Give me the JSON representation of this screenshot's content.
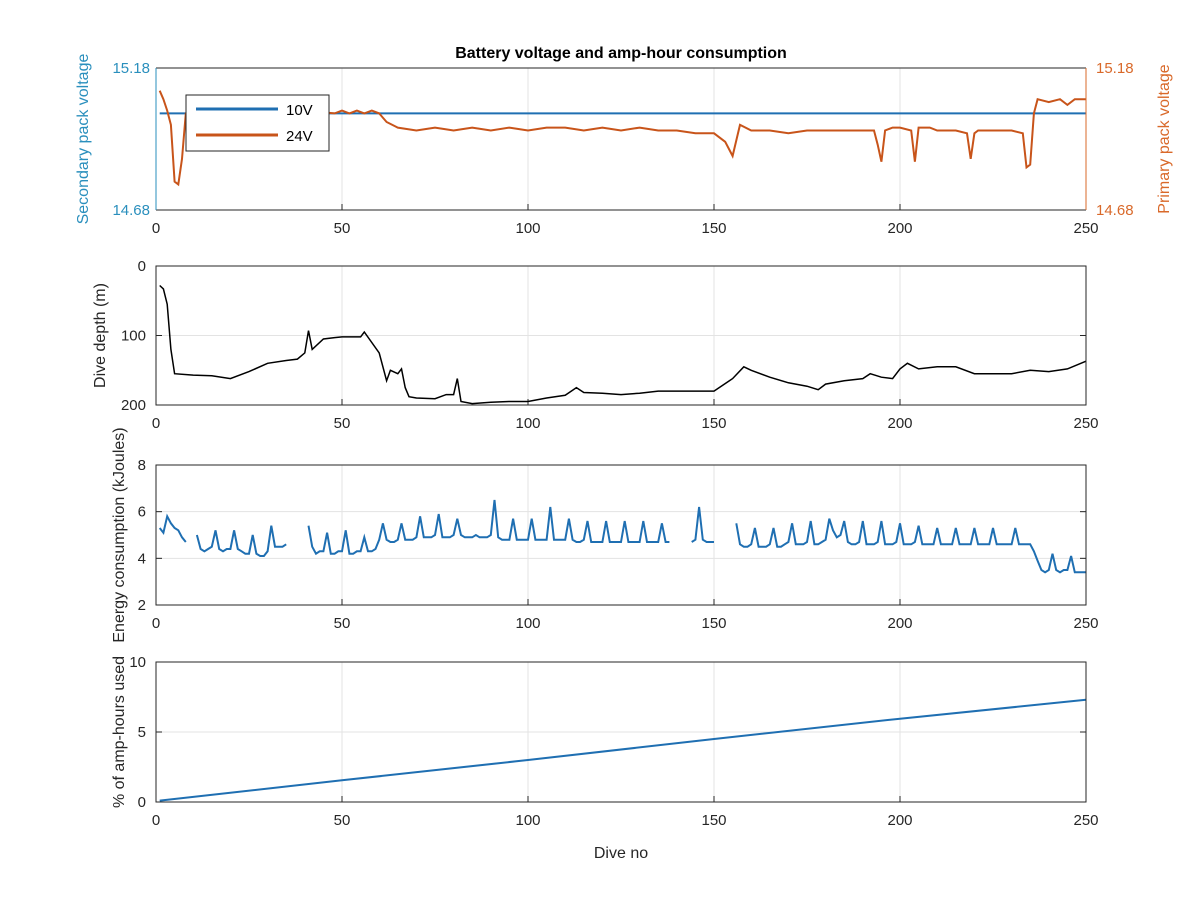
{
  "figure_title": "Battery voltage and amp-hour consumption",
  "colors": {
    "secondary": "#2a8fbd",
    "primary": "#d9692a",
    "line_blue": "#1f6fb2",
    "line_orange": "#c8541a",
    "black": "#000000",
    "grid": "#e3e3e3",
    "axis": "#262626"
  },
  "chart_data": [
    {
      "type": "line",
      "title": "Battery voltage and amp-hour consumption",
      "xlabel": "",
      "ylabel_left": "Secondary pack voltage",
      "ylabel_right": "Primary pack voltage",
      "xlim": [
        0,
        250
      ],
      "ylim_left": [
        14.68,
        15.18
      ],
      "ylim_right": [
        14.68,
        15.18
      ],
      "xticks": [
        "0",
        "50",
        "100",
        "150",
        "200",
        "250"
      ],
      "yticks_left": [
        "14.68",
        "15.18"
      ],
      "yticks_right": [
        "14.68",
        "15.18"
      ],
      "grid": true,
      "legend_position": "top-left",
      "series": [
        {
          "name": "10V",
          "axis": "left",
          "x": [
            1,
            250
          ],
          "y": [
            15.02,
            15.02
          ]
        },
        {
          "name": "24V",
          "axis": "right",
          "x": [
            1,
            2,
            3,
            4,
            5,
            6,
            7,
            8,
            10,
            15,
            20,
            30,
            40,
            48,
            50,
            52,
            54,
            56,
            58,
            60,
            62,
            65,
            70,
            75,
            80,
            85,
            90,
            95,
            100,
            105,
            110,
            115,
            120,
            125,
            130,
            135,
            140,
            145,
            150,
            153,
            155,
            157,
            160,
            165,
            170,
            175,
            180,
            185,
            190,
            193,
            194,
            195,
            196,
            198,
            200,
            203,
            204,
            205,
            206,
            208,
            210,
            215,
            218,
            219,
            220,
            221,
            223,
            225,
            230,
            233,
            234,
            235,
            236,
            237,
            240,
            243,
            245,
            247,
            250
          ],
          "y": [
            15.1,
            15.07,
            15.03,
            14.98,
            14.78,
            14.77,
            14.86,
            15.02,
            15.03,
            15.03,
            15.03,
            15.03,
            15.03,
            15.02,
            15.03,
            15.02,
            15.03,
            15.02,
            15.03,
            15.02,
            14.99,
            14.97,
            14.96,
            14.97,
            14.96,
            14.97,
            14.96,
            14.97,
            14.96,
            14.97,
            14.97,
            14.96,
            14.97,
            14.96,
            14.97,
            14.96,
            14.96,
            14.95,
            14.95,
            14.92,
            14.87,
            14.98,
            14.96,
            14.96,
            14.95,
            14.96,
            14.96,
            14.96,
            14.96,
            14.96,
            14.91,
            14.85,
            14.96,
            14.97,
            14.97,
            14.96,
            14.85,
            14.97,
            14.97,
            14.97,
            14.96,
            14.96,
            14.95,
            14.86,
            14.95,
            14.96,
            14.96,
            14.96,
            14.96,
            14.95,
            14.83,
            14.84,
            15.02,
            15.07,
            15.06,
            15.07,
            15.05,
            15.07,
            15.07
          ]
        }
      ]
    },
    {
      "type": "line",
      "xlabel": "",
      "ylabel": "Dive depth (m)",
      "xlim": [
        0,
        250
      ],
      "ylim": [
        0,
        200
      ],
      "y_reversed": true,
      "xticks": [
        "0",
        "50",
        "100",
        "150",
        "200",
        "250"
      ],
      "yticks": [
        "0",
        "100",
        "200"
      ],
      "grid": true,
      "series": [
        {
          "x": [
            1,
            2,
            3,
            4,
            5,
            10,
            15,
            20,
            25,
            30,
            35,
            38,
            40,
            41,
            42,
            45,
            48,
            50,
            55,
            56,
            60,
            62,
            63,
            65,
            66,
            67,
            68,
            70,
            75,
            78,
            80,
            81,
            82,
            85,
            90,
            95,
            100,
            105,
            110,
            113,
            115,
            120,
            125,
            130,
            135,
            140,
            145,
            150,
            155,
            158,
            160,
            165,
            170,
            175,
            178,
            180,
            185,
            190,
            192,
            195,
            198,
            200,
            202,
            205,
            210,
            215,
            220,
            225,
            230,
            235,
            240,
            245,
            250
          ],
          "y": [
            28,
            33,
            55,
            120,
            155,
            157,
            158,
            162,
            152,
            140,
            136,
            134,
            125,
            93,
            120,
            105,
            103,
            102,
            102,
            95,
            125,
            165,
            150,
            155,
            148,
            175,
            188,
            190,
            191,
            185,
            185,
            162,
            195,
            198,
            196,
            195,
            195,
            190,
            186,
            175,
            182,
            183,
            185,
            183,
            180,
            180,
            180,
            180,
            162,
            145,
            150,
            160,
            168,
            173,
            178,
            170,
            165,
            162,
            155,
            160,
            162,
            148,
            140,
            148,
            145,
            145,
            155,
            155,
            155,
            150,
            152,
            148,
            137
          ]
        }
      ]
    },
    {
      "type": "line",
      "xlabel": "",
      "ylabel": "Energy consumption (kJoules)",
      "xlim": [
        0,
        250
      ],
      "ylim": [
        2,
        8
      ],
      "xticks": [
        "0",
        "50",
        "100",
        "150",
        "200",
        "250"
      ],
      "yticks": [
        "2",
        "4",
        "6",
        "8"
      ],
      "grid": true,
      "series": [
        {
          "x": [
            1,
            2,
            3,
            4,
            5,
            6,
            7,
            8
          ],
          "y": [
            5.3,
            5.1,
            5.8,
            5.5,
            5.3,
            5.2,
            4.9,
            4.7
          ]
        },
        {
          "x": [
            11,
            12,
            13,
            14,
            15,
            16,
            17,
            18,
            19,
            20,
            21,
            22,
            23,
            24,
            25,
            26,
            27,
            28,
            29,
            30,
            31,
            32,
            33,
            34,
            35
          ],
          "y": [
            5.0,
            4.4,
            4.3,
            4.4,
            4.5,
            5.2,
            4.4,
            4.3,
            4.4,
            4.4,
            5.2,
            4.4,
            4.3,
            4.2,
            4.2,
            5.0,
            4.2,
            4.1,
            4.1,
            4.3,
            5.4,
            4.5,
            4.5,
            4.5,
            4.6
          ]
        },
        {
          "x": [
            41,
            42,
            43,
            44,
            45,
            46,
            47,
            48,
            49,
            50,
            51,
            52,
            53,
            54,
            55,
            56,
            57,
            58,
            59,
            60,
            61,
            62,
            63,
            64,
            65,
            66,
            67,
            68,
            69,
            70,
            71,
            72,
            73,
            74,
            75,
            76,
            77,
            78,
            79,
            80,
            81,
            82,
            83,
            84,
            85,
            86,
            87,
            88,
            89,
            90,
            91,
            92,
            93,
            94,
            95,
            96,
            97,
            98,
            99,
            100,
            101,
            102,
            103,
            104,
            105,
            106,
            107,
            108,
            109,
            110,
            111,
            112,
            113,
            114,
            115,
            116,
            117,
            118,
            119,
            120,
            121,
            122,
            123,
            124,
            125,
            126,
            127,
            128,
            129,
            130,
            131,
            132,
            133,
            134,
            135,
            136,
            137,
            138
          ],
          "y": [
            5.4,
            4.5,
            4.2,
            4.3,
            4.3,
            5.1,
            4.2,
            4.2,
            4.3,
            4.3,
            5.2,
            4.2,
            4.2,
            4.3,
            4.3,
            4.9,
            4.3,
            4.3,
            4.4,
            4.8,
            5.5,
            4.8,
            4.7,
            4.7,
            4.8,
            5.5,
            4.8,
            4.8,
            4.8,
            4.9,
            5.8,
            4.9,
            4.9,
            4.9,
            5.0,
            5.9,
            4.9,
            4.9,
            4.9,
            5.0,
            5.7,
            5.0,
            4.9,
            4.9,
            4.9,
            5.0,
            4.9,
            4.9,
            4.9,
            5.0,
            6.5,
            4.9,
            4.8,
            4.8,
            4.8,
            5.7,
            4.8,
            4.8,
            4.8,
            4.8,
            5.7,
            4.8,
            4.8,
            4.8,
            4.8,
            6.2,
            4.8,
            4.8,
            4.8,
            4.8,
            5.7,
            4.8,
            4.7,
            4.7,
            4.8,
            5.6,
            4.7,
            4.7,
            4.7,
            4.7,
            5.6,
            4.7,
            4.7,
            4.7,
            4.7,
            5.6,
            4.7,
            4.7,
            4.7,
            4.7,
            5.6,
            4.7,
            4.7,
            4.7,
            4.7,
            5.5,
            4.7,
            4.7
          ]
        },
        {
          "x": [
            144,
            145,
            146,
            147,
            148,
            149,
            150
          ],
          "y": [
            4.7,
            4.8,
            6.2,
            4.8,
            4.7,
            4.7,
            4.7
          ]
        },
        {
          "x": [
            156,
            157,
            158,
            159,
            160,
            161,
            162,
            163,
            164,
            165,
            166,
            167,
            168,
            169,
            170,
            171,
            172,
            173,
            174,
            175,
            176,
            177,
            178,
            179,
            180,
            181,
            182,
            183,
            184,
            185,
            186,
            187,
            188,
            189,
            190,
            191,
            192,
            193,
            194,
            195,
            196,
            197,
            198,
            199,
            200,
            201,
            202,
            203,
            204,
            205,
            206,
            207,
            208,
            209,
            210,
            211,
            212,
            213,
            214,
            215,
            216,
            217,
            218,
            219,
            220,
            221,
            222,
            223,
            224,
            225,
            226,
            227,
            228,
            229,
            230,
            231,
            232,
            233,
            234,
            235,
            236,
            237,
            238,
            239,
            240,
            241,
            242,
            243,
            244,
            245,
            246,
            247,
            248,
            249,
            250
          ],
          "y": [
            5.5,
            4.6,
            4.5,
            4.5,
            4.6,
            5.3,
            4.5,
            4.5,
            4.5,
            4.6,
            5.3,
            4.5,
            4.5,
            4.6,
            4.7,
            5.5,
            4.6,
            4.6,
            4.6,
            4.7,
            5.6,
            4.6,
            4.6,
            4.7,
            4.8,
            5.7,
            5.2,
            4.9,
            5.0,
            5.6,
            4.7,
            4.6,
            4.6,
            4.7,
            5.6,
            4.6,
            4.6,
            4.6,
            4.7,
            5.6,
            4.6,
            4.6,
            4.6,
            4.7,
            5.5,
            4.6,
            4.6,
            4.6,
            4.7,
            5.4,
            4.6,
            4.6,
            4.6,
            4.6,
            5.3,
            4.6,
            4.6,
            4.6,
            4.6,
            5.3,
            4.6,
            4.6,
            4.6,
            4.6,
            5.3,
            4.6,
            4.6,
            4.6,
            4.6,
            5.3,
            4.6,
            4.6,
            4.6,
            4.6,
            4.6,
            5.3,
            4.6,
            4.6,
            4.6,
            4.6,
            4.3,
            3.9,
            3.5,
            3.4,
            3.5,
            4.2,
            3.5,
            3.4,
            3.5,
            3.5,
            4.1,
            3.4,
            3.4,
            3.4,
            3.4
          ]
        }
      ]
    },
    {
      "type": "line",
      "xlabel": "Dive no",
      "ylabel": "% of amp-hours used",
      "xlim": [
        0,
        250
      ],
      "ylim": [
        0,
        10
      ],
      "xticks": [
        "0",
        "50",
        "100",
        "150",
        "200",
        "250"
      ],
      "yticks": [
        "0",
        "5",
        "10"
      ],
      "grid": true,
      "series": [
        {
          "x": [
            1,
            50,
            100,
            150,
            200,
            250
          ],
          "y": [
            0.1,
            1.55,
            3.0,
            4.5,
            5.95,
            7.3
          ]
        }
      ]
    }
  ]
}
